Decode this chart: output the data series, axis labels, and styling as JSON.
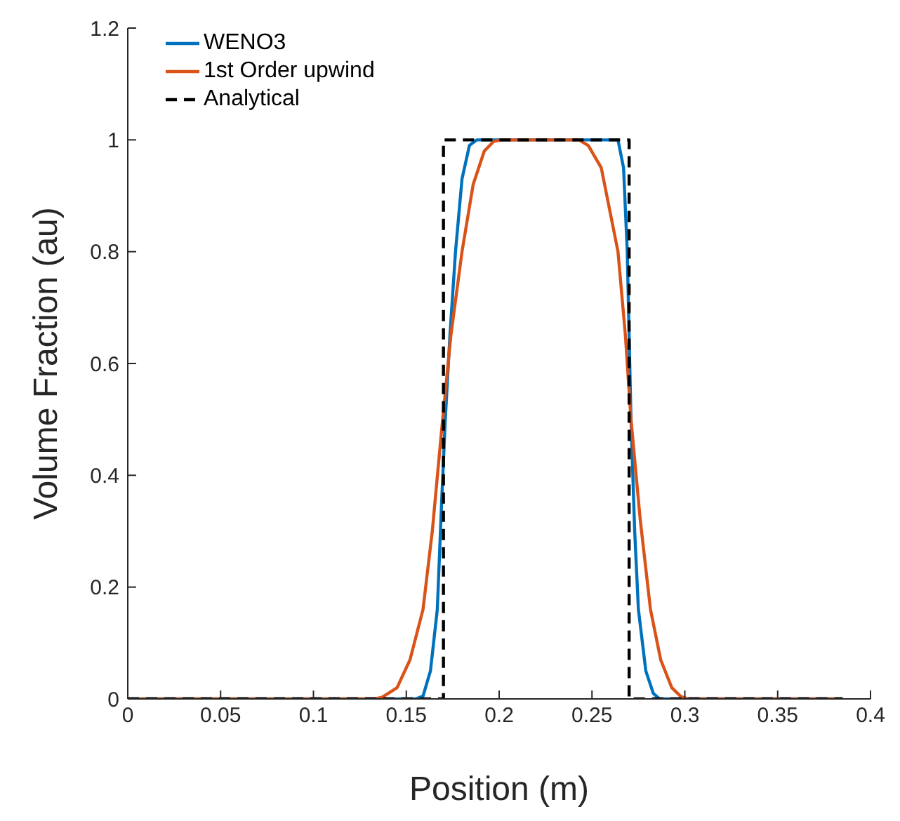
{
  "chart_data": {
    "type": "line",
    "xlabel": "Position (m)",
    "ylabel": "Volume Fraction (au)",
    "xlim": [
      0,
      0.4
    ],
    "xticks": [
      0,
      0.05,
      0.1,
      0.15,
      0.2,
      0.25,
      0.3,
      0.35,
      0.4
    ],
    "ylim": [
      0,
      1.2
    ],
    "yticks": [
      0,
      0.2,
      0.4,
      0.6,
      0.8,
      1,
      1.2
    ],
    "grid": false,
    "legend": "top left",
    "marker": "none",
    "series": [
      {
        "name": "WENO3",
        "color": "#0072bd",
        "line_style": "solid",
        "x": [
          0,
          0.155,
          0.159,
          0.163,
          0.1667,
          0.169,
          0.171,
          0.1735,
          0.1765,
          0.18,
          0.184,
          0.188,
          0.264,
          0.267,
          0.269,
          0.271,
          0.273,
          0.275,
          0.279,
          0.283,
          0.2864,
          0.385
        ],
        "values": [
          0,
          0,
          0.005,
          0.05,
          0.16,
          0.35,
          0.5,
          0.65,
          0.8,
          0.93,
          0.99,
          1,
          1,
          0.95,
          0.8,
          0.5,
          0.3,
          0.16,
          0.05,
          0.01,
          0,
          0
        ]
      },
      {
        "name": "1st Order upwind",
        "color": "#d95319",
        "line_style": "solid",
        "x": [
          0,
          0.133,
          0.137,
          0.145,
          0.152,
          0.159,
          0.164,
          0.169,
          0.174,
          0.18,
          0.186,
          0.192,
          0.197,
          0.201,
          0.243,
          0.248,
          0.255,
          0.264,
          0.268,
          0.271,
          0.276,
          0.2815,
          0.287,
          0.293,
          0.298,
          0.302,
          0.385
        ],
        "values": [
          0,
          0,
          0.003,
          0.02,
          0.07,
          0.16,
          0.3,
          0.48,
          0.65,
          0.8,
          0.92,
          0.98,
          0.997,
          1,
          1,
          0.99,
          0.95,
          0.8,
          0.65,
          0.5,
          0.32,
          0.16,
          0.07,
          0.02,
          0.004,
          0,
          0
        ]
      },
      {
        "name": "Analytical",
        "color": "#000000",
        "line_style": "dashed",
        "x": [
          0,
          0.17,
          0.17,
          0.27,
          0.27,
          0.385
        ],
        "values": [
          0,
          0,
          1,
          1,
          0,
          0
        ]
      }
    ]
  }
}
